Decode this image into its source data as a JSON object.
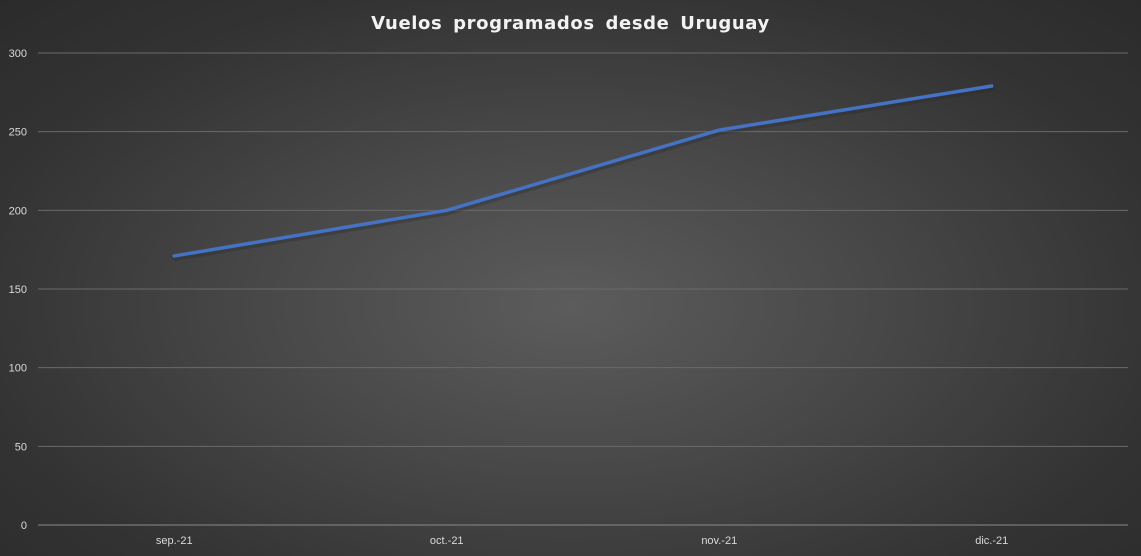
{
  "chart_data": {
    "type": "line",
    "title": "Vuelos programados desde Uruguay",
    "xlabel": "",
    "ylabel": "",
    "categories": [
      "sep.-21",
      "oct.-21",
      "nov.-21",
      "dic.-21"
    ],
    "series": [
      {
        "values": [
          171,
          200,
          251,
          279
        ],
        "color": "#4472c4"
      }
    ],
    "ylim": [
      0,
      300
    ],
    "yticks": [
      0,
      50,
      100,
      150,
      200,
      250,
      300
    ],
    "grid": true,
    "legend": "none"
  }
}
